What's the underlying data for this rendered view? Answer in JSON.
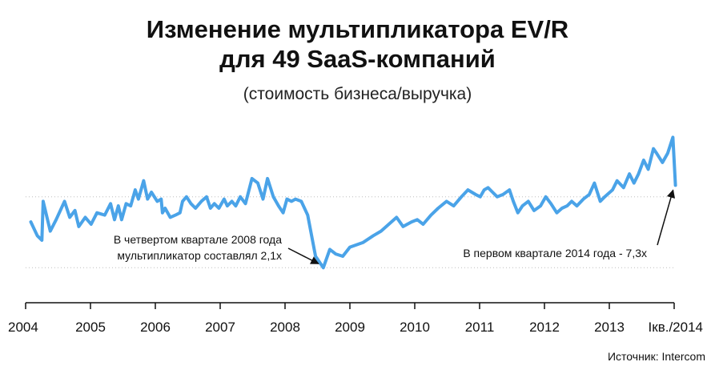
{
  "title_line1": "Изменение мультипликатора EV/R",
  "title_line2": "для 49 SaaS-компаний",
  "subtitle": "(стоимость бизнеса/выручка)",
  "source": "Источник: Intercom",
  "colors": {
    "line": "#4aa3e8",
    "grid": "#bdbdbd",
    "axis": "#111111"
  },
  "chart_data": {
    "type": "line",
    "title": "Изменение мультипликатора EV/R для 49 SaaS-компаний",
    "subtitle": "(стоимость бизнеса/выручка)",
    "xlabel": "",
    "ylabel": "",
    "x_tick_labels": [
      "2004",
      "2005",
      "2006",
      "2007",
      "2008",
      "2009",
      "2010",
      "2011",
      "2012",
      "2013",
      "Iкв./2014"
    ],
    "x_range": [
      2004.0,
      2014.0
    ],
    "y_range": [
      1.4,
      8.4
    ],
    "grid": "horizontal dotted",
    "legend": "none",
    "series": [
      {
        "values": [
          [
            2004.08,
            3.6
          ],
          [
            2004.18,
            3.0
          ],
          [
            2004.25,
            2.8
          ],
          [
            2004.27,
            4.5
          ],
          [
            2004.38,
            3.2
          ],
          [
            2004.47,
            3.7
          ],
          [
            2004.6,
            4.5
          ],
          [
            2004.68,
            3.8
          ],
          [
            2004.76,
            4.1
          ],
          [
            2004.82,
            3.4
          ],
          [
            2004.92,
            3.8
          ],
          [
            2005.01,
            3.5
          ],
          [
            2005.1,
            4.0
          ],
          [
            2005.22,
            3.9
          ],
          [
            2005.31,
            4.4
          ],
          [
            2005.37,
            3.7
          ],
          [
            2005.43,
            4.3
          ],
          [
            2005.48,
            3.7
          ],
          [
            2005.55,
            4.4
          ],
          [
            2005.62,
            4.3
          ],
          [
            2005.69,
            5.0
          ],
          [
            2005.74,
            4.6
          ],
          [
            2005.82,
            5.4
          ],
          [
            2005.88,
            4.6
          ],
          [
            2005.94,
            4.9
          ],
          [
            2006.03,
            4.5
          ],
          [
            2006.09,
            4.6
          ],
          [
            2006.11,
            4.0
          ],
          [
            2006.15,
            4.2
          ],
          [
            2006.23,
            3.8
          ],
          [
            2006.31,
            3.9
          ],
          [
            2006.38,
            4.0
          ],
          [
            2006.42,
            4.5
          ],
          [
            2006.48,
            4.7
          ],
          [
            2006.55,
            4.4
          ],
          [
            2006.62,
            4.2
          ],
          [
            2006.71,
            4.5
          ],
          [
            2006.79,
            4.7
          ],
          [
            2006.85,
            4.2
          ],
          [
            2006.91,
            4.4
          ],
          [
            2006.98,
            4.2
          ],
          [
            2007.06,
            4.6
          ],
          [
            2007.11,
            4.3
          ],
          [
            2007.18,
            4.5
          ],
          [
            2007.24,
            4.3
          ],
          [
            2007.31,
            4.7
          ],
          [
            2007.39,
            4.4
          ],
          [
            2007.49,
            5.5
          ],
          [
            2007.58,
            5.3
          ],
          [
            2007.66,
            4.6
          ],
          [
            2007.73,
            5.5
          ],
          [
            2007.82,
            4.7
          ],
          [
            2007.9,
            4.3
          ],
          [
            2007.97,
            4.0
          ],
          [
            2008.03,
            4.6
          ],
          [
            2008.1,
            4.5
          ],
          [
            2008.16,
            4.6
          ],
          [
            2008.25,
            4.5
          ],
          [
            2008.35,
            3.9
          ],
          [
            2008.47,
            2.1
          ],
          [
            2008.59,
            1.6
          ],
          [
            2008.69,
            2.4
          ],
          [
            2008.78,
            2.2
          ],
          [
            2008.89,
            2.1
          ],
          [
            2009.0,
            2.5
          ],
          [
            2009.1,
            2.6
          ],
          [
            2009.2,
            2.7
          ],
          [
            2009.36,
            3.0
          ],
          [
            2009.48,
            3.2
          ],
          [
            2009.6,
            3.5
          ],
          [
            2009.72,
            3.8
          ],
          [
            2009.82,
            3.4
          ],
          [
            2009.95,
            3.6
          ],
          [
            2010.04,
            3.7
          ],
          [
            2010.13,
            3.5
          ],
          [
            2010.25,
            3.9
          ],
          [
            2010.36,
            4.2
          ],
          [
            2010.49,
            4.5
          ],
          [
            2010.6,
            4.3
          ],
          [
            2010.72,
            4.7
          ],
          [
            2010.82,
            5.0
          ],
          [
            2010.94,
            4.8
          ],
          [
            2011.01,
            4.7
          ],
          [
            2011.07,
            5.0
          ],
          [
            2011.13,
            5.1
          ],
          [
            2011.2,
            4.9
          ],
          [
            2011.27,
            4.7
          ],
          [
            2011.36,
            4.8
          ],
          [
            2011.46,
            5.0
          ],
          [
            2011.52,
            4.5
          ],
          [
            2011.59,
            4.0
          ],
          [
            2011.66,
            4.3
          ],
          [
            2011.75,
            4.5
          ],
          [
            2011.84,
            4.1
          ],
          [
            2011.94,
            4.3
          ],
          [
            2012.02,
            4.7
          ],
          [
            2012.1,
            4.4
          ],
          [
            2012.19,
            4.0
          ],
          [
            2012.27,
            4.2
          ],
          [
            2012.35,
            4.3
          ],
          [
            2012.42,
            4.5
          ],
          [
            2012.5,
            4.3
          ],
          [
            2012.6,
            4.6
          ],
          [
            2012.69,
            4.8
          ],
          [
            2012.77,
            5.3
          ],
          [
            2012.86,
            4.5
          ],
          [
            2012.93,
            4.7
          ],
          [
            2013.05,
            5.0
          ],
          [
            2013.12,
            5.4
          ],
          [
            2013.22,
            5.1
          ],
          [
            2013.31,
            5.7
          ],
          [
            2013.38,
            5.3
          ],
          [
            2013.45,
            5.7
          ],
          [
            2013.53,
            6.3
          ],
          [
            2013.6,
            5.9
          ],
          [
            2013.68,
            6.8
          ],
          [
            2013.73,
            6.6
          ],
          [
            2013.82,
            6.2
          ],
          [
            2013.9,
            6.6
          ],
          [
            2013.98,
            7.3
          ],
          [
            2014.02,
            5.2
          ]
        ]
      }
    ],
    "annotations": [
      {
        "lines": [
          "В четвертом квартале 2008 года",
          "мультипликатор составлял 2,1х"
        ],
        "target": [
          2008.59,
          1.6
        ]
      },
      {
        "lines": [
          "В первом квартале 2014 года - 7,3х"
        ],
        "target": [
          2014.02,
          5.2
        ]
      }
    ]
  }
}
